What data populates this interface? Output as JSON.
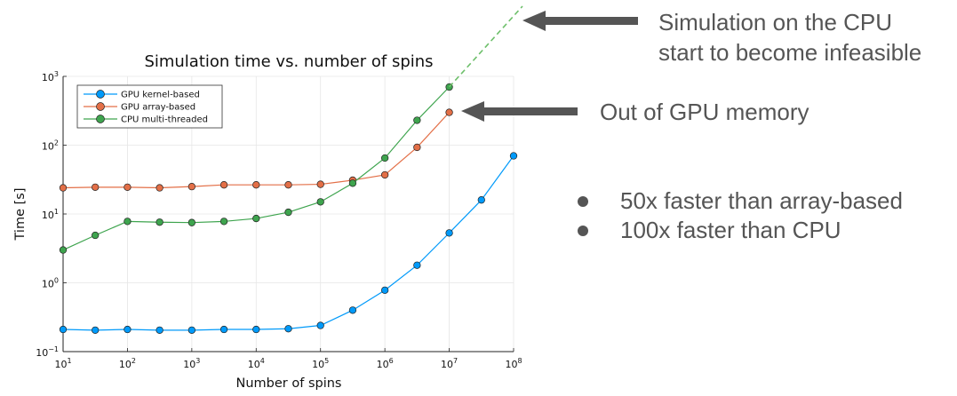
{
  "chart_data": {
    "type": "line",
    "title": "Simulation time vs. number of spins",
    "xlabel": "Number of spins",
    "ylabel": "Time [s]",
    "xscale": "log",
    "yscale": "log",
    "xlim": [
      10,
      100000000
    ],
    "ylim": [
      0.1,
      1000
    ],
    "x_ticks": [
      {
        "base": "10",
        "exp": "1"
      },
      {
        "base": "10",
        "exp": "2"
      },
      {
        "base": "10",
        "exp": "3"
      },
      {
        "base": "10",
        "exp": "4"
      },
      {
        "base": "10",
        "exp": "5"
      },
      {
        "base": "10",
        "exp": "6"
      },
      {
        "base": "10",
        "exp": "7"
      },
      {
        "base": "10",
        "exp": "8"
      }
    ],
    "y_ticks": [
      {
        "base": "10",
        "exp": "−1"
      },
      {
        "base": "10",
        "exp": "0"
      },
      {
        "base": "10",
        "exp": "1"
      },
      {
        "base": "10",
        "exp": "2"
      },
      {
        "base": "10",
        "exp": "3"
      }
    ],
    "grid": true,
    "legend_position": "top-left",
    "series": [
      {
        "name": "GPU kernel-based",
        "color": "#009AFA",
        "x": [
          10,
          31.6,
          100,
          316,
          1000,
          3162,
          10000,
          31623,
          100000,
          316228,
          1000000,
          3162278,
          10000000,
          31622777,
          100000000
        ],
        "values": [
          0.21,
          0.205,
          0.21,
          0.205,
          0.205,
          0.21,
          0.21,
          0.215,
          0.24,
          0.4,
          0.78,
          1.8,
          5.3,
          16,
          70
        ]
      },
      {
        "name": "GPU array-based",
        "color": "#E36F47",
        "x": [
          10,
          31.6,
          100,
          316,
          1000,
          3162,
          10000,
          31623,
          100000,
          316228,
          1000000,
          3162278,
          10000000
        ],
        "values": [
          24,
          24.5,
          24.5,
          24,
          25,
          26.5,
          26.5,
          26.5,
          27,
          31,
          37,
          93,
          300
        ]
      },
      {
        "name": "CPU multi-threaded",
        "color": "#3EA44E",
        "x": [
          10,
          31.6,
          100,
          316,
          1000,
          3162,
          10000,
          31623,
          100000,
          316228,
          1000000,
          3162278,
          10000000
        ],
        "values": [
          3.0,
          4.9,
          7.8,
          7.6,
          7.5,
          7.8,
          8.6,
          10.6,
          15,
          28,
          65,
          230,
          700
        ]
      }
    ],
    "annotations": {
      "cpu_infeasible": [
        "Simulation on the CPU",
        "start to become infeasible"
      ],
      "gpu_memory": "Out of GPU memory",
      "bullets": [
        "50x faster than array-based",
        "100x faster than CPU"
      ]
    }
  }
}
